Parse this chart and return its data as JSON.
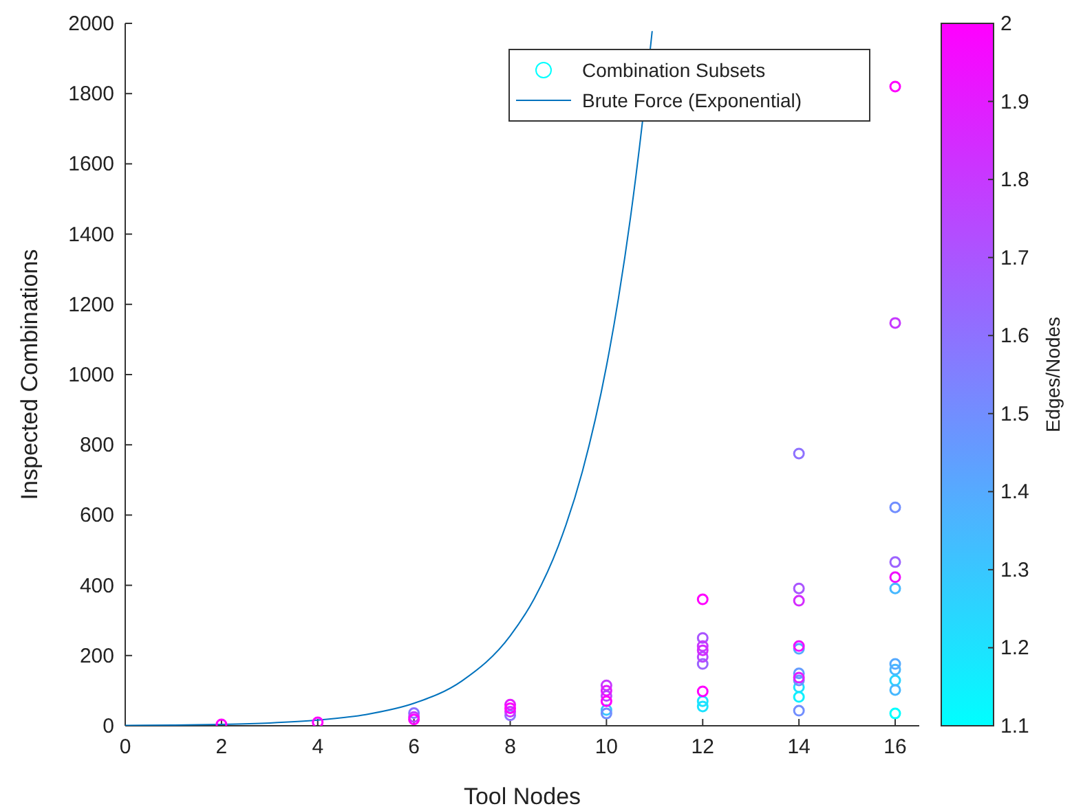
{
  "chart_data": {
    "type": "scatter",
    "xlabel": "Tool Nodes",
    "ylabel": "Inspected Combinations",
    "clabel": "Edges/Nodes",
    "xlim": [
      0,
      16.5
    ],
    "ylim": [
      0,
      2000
    ],
    "xticks": [
      0,
      2,
      4,
      6,
      8,
      10,
      12,
      14,
      16
    ],
    "yticks": [
      0,
      200,
      400,
      600,
      800,
      1000,
      1200,
      1400,
      1600,
      1800,
      2000
    ],
    "clim": [
      1.1,
      2
    ],
    "cticks": [
      1.1,
      1.2,
      1.3,
      1.4,
      1.5,
      1.6,
      1.7,
      1.8,
      1.9,
      2
    ],
    "legend": "top right",
    "grid": false,
    "series": [
      {
        "name": "Combination Subsets",
        "marker": "circle",
        "color": "#00ffff",
        "colors": [
          "#ff00ff",
          "#ff00ff",
          "#8e71ff",
          "#c639ff",
          "#ff00ff",
          "#e31cff",
          "#ff00ff",
          "#c639ff",
          "#8e71ff",
          "#c639ff",
          "#e31cff",
          "#b847ff",
          "#ff00ff",
          "#39c6ff",
          "#718eff",
          "#ff00ff",
          "#aa55ff",
          "#c639ff",
          "#d42bff",
          "#b847ff",
          "#9c63ff",
          "#ff00ff",
          "#1ce3ff",
          "#1ce3ff",
          "#8e71ff",
          "#aa55ff",
          "#d42bff",
          "#f10eff",
          "#55aaff",
          "#639cff",
          "#e31cff",
          "#718eff",
          "#1ce3ff",
          "#0ef1ff",
          "#718eff",
          "#ff00ff",
          "#c639ff",
          "#718eff",
          "#9c63ff",
          "#f10eff",
          "#47b8ff",
          "#55aaff",
          "#47b8ff",
          "#2bd4ff",
          "#47b8ff",
          "#00ffff"
        ],
        "x": [
          2,
          4,
          6,
          6,
          6,
          8,
          8,
          8,
          8,
          10,
          10,
          10,
          10,
          10,
          10,
          12,
          12,
          12,
          12,
          12,
          12,
          12,
          12,
          12,
          14,
          14,
          14,
          14,
          14,
          14,
          14,
          14,
          14,
          14,
          14,
          16,
          16,
          16,
          16,
          16,
          16,
          16,
          16,
          16,
          16,
          16
        ],
        "values": [
          4,
          10,
          36,
          25,
          18,
          60,
          50,
          40,
          30,
          115,
          100,
          85,
          70,
          45,
          35,
          360,
          250,
          227,
          215,
          196,
          176,
          98,
          70,
          55,
          775,
          391,
          356,
          227,
          219,
          149,
          137,
          129,
          110,
          82,
          43,
          1820,
          1147,
          622,
          466,
          423,
          391,
          176,
          160,
          129,
          102,
          35
        ],
        "cvalues": [
          2,
          2,
          1.6,
          1.8,
          2,
          1.9,
          2,
          1.8,
          1.6,
          1.8,
          1.9,
          1.75,
          2,
          1.3,
          1.5,
          2,
          1.7,
          1.8,
          1.85,
          1.75,
          1.65,
          2,
          1.2,
          1.2,
          1.6,
          1.7,
          1.85,
          1.95,
          1.4,
          1.45,
          1.9,
          1.5,
          1.2,
          1.15,
          1.5,
          2,
          1.8,
          1.5,
          1.65,
          1.95,
          1.35,
          1.4,
          1.35,
          1.25,
          1.35,
          1.1
        ]
      },
      {
        "name": "Brute Force (Exponential)",
        "type": "line",
        "marker": "none",
        "color": "#0072bd",
        "x": [
          0,
          1,
          2,
          3,
          4,
          5,
          6,
          7,
          8,
          8.5,
          9,
          9.5,
          10,
          10.25,
          10.5,
          10.75,
          10.95
        ],
        "values": [
          1,
          2,
          4,
          8,
          16,
          32,
          64,
          128,
          256,
          362,
          512,
          724,
          1024,
          1218,
          1448,
          1722,
          1978
        ]
      }
    ]
  }
}
